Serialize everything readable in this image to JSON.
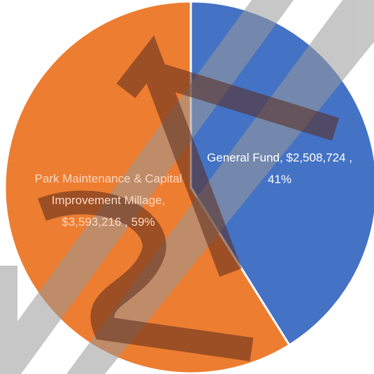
{
  "chart_data": {
    "type": "pie",
    "values": [
      2508724,
      3593216
    ],
    "value_labels": [
      "General Fund, $2,508,724 , 41%",
      "Park Maintenance & Capital Improvement Millage, $3,593,216 , 59%"
    ],
    "colors": [
      "#4472c4",
      "#ed7d31"
    ],
    "start_angle": 0,
    "direction": "clockwise"
  }
}
